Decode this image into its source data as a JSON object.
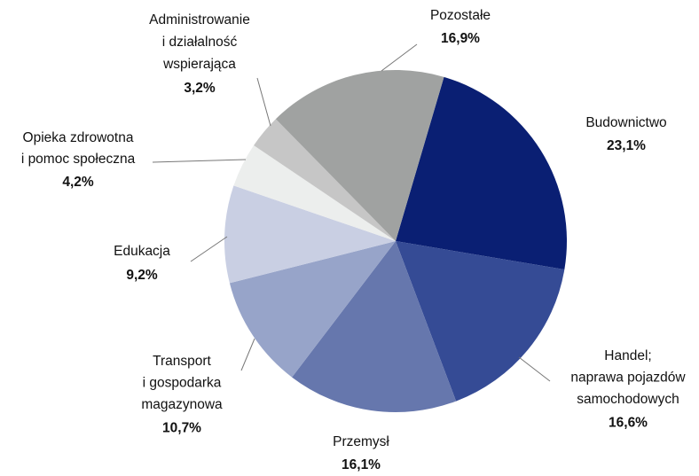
{
  "chart_data": {
    "type": "pie",
    "categories": [
      "Budownictwo",
      "Handel;\nnaprawa pojazdów\nsamochodowych",
      "Przemysł",
      "Transport\ni gospodarka\nmagazynowa",
      "Edukacja",
      "Opieka zdrowotna\ni pomoc społeczna",
      "Administrowanie\ni działalność\nwspierająca",
      "Pozostałe"
    ],
    "values": [
      23.1,
      16.6,
      16.1,
      10.7,
      9.2,
      4.2,
      3.2,
      16.9
    ],
    "value_labels": [
      "23,1%",
      "16,6%",
      "16,1%",
      "10,7%",
      "9,2%",
      "4,2%",
      "3,2%",
      "16,9%"
    ],
    "colors": [
      "#0a1f73",
      "#354b95",
      "#6677ad",
      "#97a4c9",
      "#c9cfe3",
      "#eceeed",
      "#c6c6c6",
      "#a0a2a1"
    ]
  }
}
